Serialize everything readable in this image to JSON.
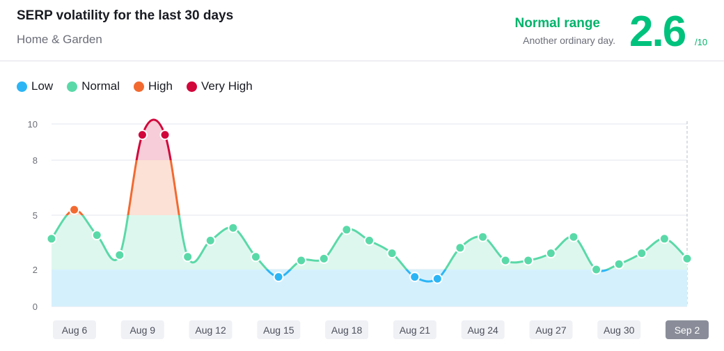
{
  "header": {
    "title": "SERP volatility for the last 30 days",
    "subtitle": "Home & Garden",
    "range_label": "Normal range",
    "range_note": "Another ordinary day.",
    "score": "2.6",
    "score_max": "/10"
  },
  "colors": {
    "low": "#2bb5f5",
    "normal": "#5ad9a8",
    "high": "#f26a30",
    "very_high": "#d1063b"
  },
  "legend": [
    {
      "label": "Low",
      "color": "#2bb5f5"
    },
    {
      "label": "Normal",
      "color": "#5ad9a8"
    },
    {
      "label": "High",
      "color": "#f26a30"
    },
    {
      "label": "Very High",
      "color": "#d1063b"
    }
  ],
  "chart_data": {
    "type": "line",
    "title": "SERP volatility for the last 30 days",
    "xlabel": "",
    "ylabel": "",
    "ylim": [
      0,
      10
    ],
    "y_ticks": [
      0,
      2,
      5,
      8,
      10
    ],
    "bands": [
      {
        "name": "Low",
        "from": 0,
        "to": 2
      },
      {
        "name": "Normal",
        "from": 2,
        "to": 5
      },
      {
        "name": "High",
        "from": 5,
        "to": 8
      },
      {
        "name": "Very High",
        "from": 8,
        "to": 10
      }
    ],
    "x_tick_labels": [
      "Aug 6",
      "Aug 9",
      "Aug 12",
      "Aug 15",
      "Aug 18",
      "Aug 21",
      "Aug 24",
      "Aug 27",
      "Aug 30",
      "Sep 2"
    ],
    "highlighted_tick": "Sep 2",
    "grid": true,
    "x": [
      "Aug 5",
      "Aug 6",
      "Aug 7",
      "Aug 8",
      "Aug 9",
      "Aug 10",
      "Aug 11",
      "Aug 12",
      "Aug 13",
      "Aug 14",
      "Aug 15",
      "Aug 16",
      "Aug 17",
      "Aug 18",
      "Aug 19",
      "Aug 20",
      "Aug 21",
      "Aug 22",
      "Aug 23",
      "Aug 24",
      "Aug 25",
      "Aug 26",
      "Aug 27",
      "Aug 28",
      "Aug 29",
      "Aug 30",
      "Aug 31",
      "Sep 1",
      "Sep 2"
    ],
    "series": [
      {
        "values": [
          3.7,
          5.3,
          3.9,
          2.8,
          9.4,
          9.4,
          2.7,
          3.6,
          4.3,
          2.7,
          1.6,
          2.5,
          2.6,
          4.2,
          3.6,
          2.9,
          1.6,
          1.5,
          3.2,
          3.8,
          2.5,
          2.5,
          2.9,
          3.8,
          2.0,
          2.3,
          2.9,
          3.7,
          2.6
        ]
      }
    ]
  }
}
